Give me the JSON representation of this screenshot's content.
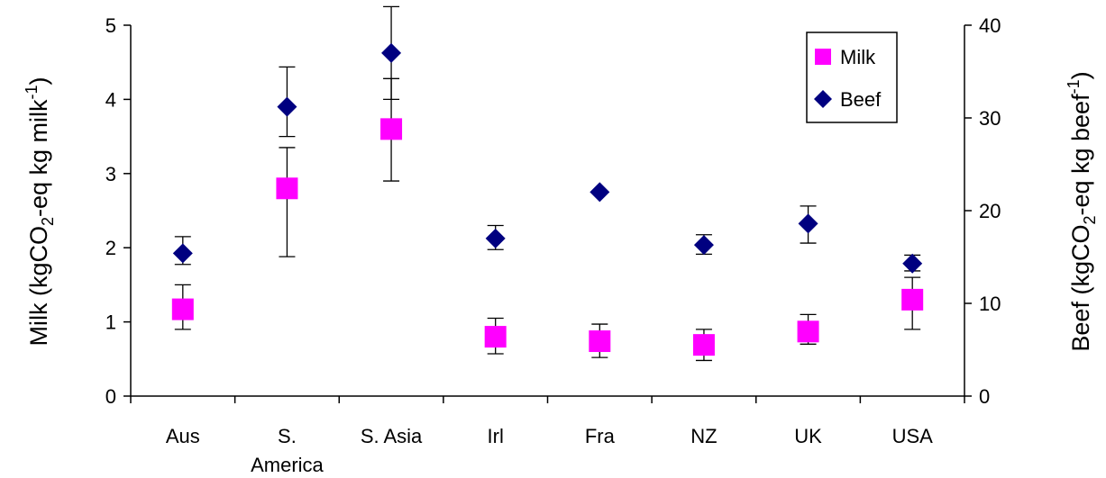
{
  "chart_data": {
    "type": "scatter",
    "categories": [
      "Aus",
      "S. America",
      "S. Asia",
      "Irl",
      "Fra",
      "NZ",
      "UK",
      "USA"
    ],
    "category_lines": [
      [
        "Aus"
      ],
      [
        "S.",
        "America"
      ],
      [
        "S. Asia"
      ],
      [
        "Irl"
      ],
      [
        "Fra"
      ],
      [
        "NZ"
      ],
      [
        "UK"
      ],
      [
        "USA"
      ]
    ],
    "y_left": {
      "label_parts": [
        "Milk (kgCO",
        "2",
        "-eq kg milk",
        "-1",
        ")"
      ],
      "ylim": [
        0,
        5
      ],
      "ticks": [
        "0",
        "1",
        "2",
        "3",
        "4",
        "5"
      ]
    },
    "y_right": {
      "label_parts": [
        "Beef (kgCO",
        "2",
        "-eq kg beef",
        "-1",
        ")"
      ],
      "ylim": [
        0,
        40
      ],
      "ticks": [
        "0",
        "10",
        "20",
        "30",
        "40"
      ]
    },
    "series": [
      {
        "name": "Milk",
        "axis": "left",
        "marker": "square",
        "color": "#ff00ff",
        "values": [
          1.17,
          2.8,
          3.6,
          0.8,
          0.74,
          0.69,
          0.87,
          1.3
        ],
        "error_low": [
          0.9,
          1.88,
          2.9,
          0.57,
          0.52,
          0.48,
          0.7,
          0.9
        ],
        "error_high": [
          1.5,
          3.35,
          4.28,
          1.05,
          0.97,
          0.9,
          1.1,
          1.6
        ]
      },
      {
        "name": "Beef",
        "axis": "right",
        "marker": "diamond",
        "color": "#000080",
        "values": [
          15.4,
          31.2,
          37.0,
          17.0,
          22.0,
          16.3,
          18.6,
          14.3
        ],
        "error_low": [
          14.2,
          28.0,
          32.0,
          15.8,
          null,
          15.3,
          16.5,
          13.5
        ],
        "error_high": [
          17.2,
          35.5,
          42.0,
          18.4,
          null,
          17.4,
          20.5,
          15.2
        ]
      }
    ],
    "legend": {
      "position": "top-right",
      "entries": [
        "Milk",
        "Beef"
      ]
    },
    "grid": false
  }
}
